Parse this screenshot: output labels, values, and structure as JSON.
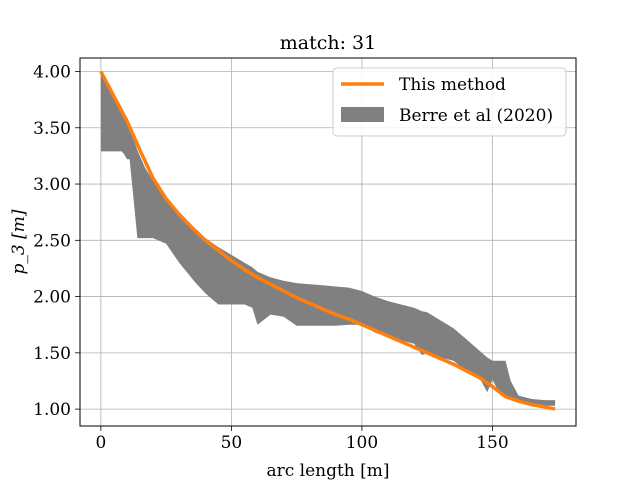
{
  "chart_data": {
    "type": "line",
    "title": "match: 31",
    "xlabel": "arc length [m]",
    "ylabel": "p_3 [m]",
    "xlim": [
      -8,
      182
    ],
    "ylim": [
      0.85,
      4.12
    ],
    "grid": true,
    "legend_placement": "top-right",
    "x_ticks": [
      0,
      50,
      100,
      150
    ],
    "x_tick_labels": [
      "0",
      "50",
      "100",
      "150"
    ],
    "y_ticks": [
      1.0,
      1.5,
      2.0,
      2.5,
      3.0,
      3.5,
      4.0
    ],
    "y_tick_labels": [
      "1.00",
      "1.50",
      "2.00",
      "2.50",
      "3.00",
      "3.50",
      "4.00"
    ],
    "series": [
      {
        "name": "This method",
        "kind": "line",
        "color": "#ff7f0e",
        "x": [
          0,
          5,
          10,
          15,
          20,
          25,
          30,
          35,
          40,
          45,
          50,
          55,
          60,
          65,
          70,
          75,
          80,
          85,
          90,
          95,
          100,
          105,
          110,
          115,
          120,
          125,
          130,
          135,
          140,
          145,
          150,
          155,
          160,
          165,
          170,
          174
        ],
        "y": [
          4.0,
          3.78,
          3.56,
          3.3,
          3.05,
          2.87,
          2.73,
          2.61,
          2.5,
          2.41,
          2.32,
          2.24,
          2.17,
          2.11,
          2.05,
          1.99,
          1.94,
          1.89,
          1.84,
          1.8,
          1.75,
          1.7,
          1.65,
          1.6,
          1.55,
          1.5,
          1.45,
          1.4,
          1.34,
          1.28,
          1.2,
          1.11,
          1.07,
          1.04,
          1.02,
          1.0
        ]
      },
      {
        "name": "Berre et al (2020)",
        "kind": "band",
        "color": "#808080",
        "x": [
          0,
          5,
          8,
          9,
          10,
          11,
          14,
          17,
          20,
          25,
          30,
          36,
          40,
          45,
          50,
          55,
          58,
          60,
          65,
          70,
          75,
          80,
          85,
          90,
          95,
          100,
          105,
          110,
          115,
          120,
          123,
          125,
          130,
          135,
          140,
          145,
          148,
          150,
          152,
          155,
          157,
          160,
          165,
          170,
          174
        ],
        "upper": [
          4.0,
          3.8,
          3.62,
          3.58,
          3.55,
          3.5,
          3.3,
          3.14,
          3.03,
          2.88,
          2.73,
          2.59,
          2.52,
          2.44,
          2.37,
          2.3,
          2.26,
          2.22,
          2.17,
          2.14,
          2.12,
          2.11,
          2.1,
          2.09,
          2.08,
          2.05,
          2.0,
          1.96,
          1.93,
          1.9,
          1.87,
          1.86,
          1.79,
          1.72,
          1.62,
          1.52,
          1.46,
          1.43,
          1.43,
          1.43,
          1.25,
          1.12,
          1.09,
          1.08,
          1.08
        ],
        "lower": [
          3.29,
          3.29,
          3.29,
          3.26,
          3.22,
          3.22,
          2.52,
          2.52,
          2.52,
          2.47,
          2.3,
          2.13,
          2.03,
          1.93,
          1.93,
          1.93,
          1.9,
          1.75,
          1.84,
          1.82,
          1.74,
          1.74,
          1.74,
          1.74,
          1.75,
          1.75,
          1.68,
          1.64,
          1.61,
          1.58,
          1.48,
          1.5,
          1.46,
          1.43,
          1.34,
          1.28,
          1.15,
          1.26,
          1.17,
          1.12,
          1.08,
          1.06,
          1.03,
          1.03,
          1.03
        ]
      }
    ]
  }
}
